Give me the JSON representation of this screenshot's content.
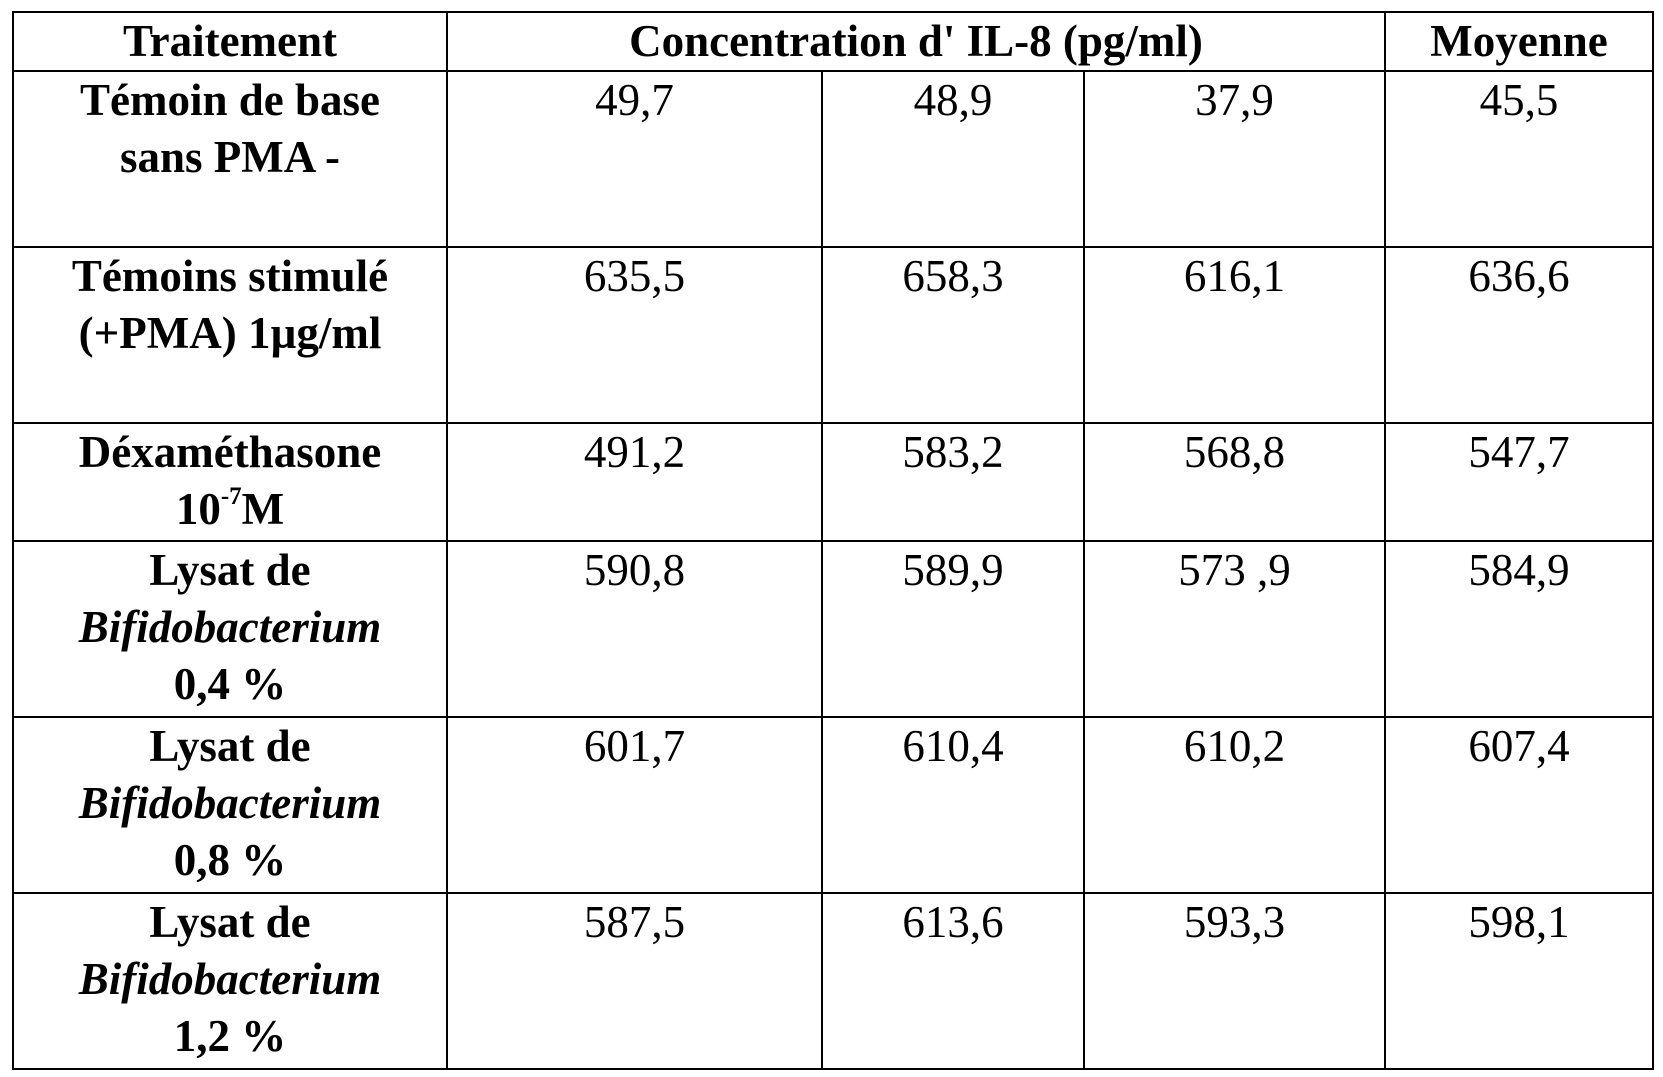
{
  "header": {
    "traitement": "Traitement",
    "concentration": "Concentration d' IL-8 (pg/ml)",
    "moyenne": "Moyenne"
  },
  "rows": [
    {
      "label_lines": [
        "Témoin de base",
        "sans PMA -"
      ],
      "values": [
        "49,7",
        "48,9",
        "37,9"
      ],
      "moyenne": "45,5"
    },
    {
      "label_lines": [
        "Témoins stimulé",
        "(+PMA)  1µg/ml"
      ],
      "values": [
        "635,5",
        "658,3",
        "616,1"
      ],
      "moyenne": "636,6"
    },
    {
      "label_lines": [
        "Déxaméthasone"
      ],
      "label_base": "10",
      "label_exp": "-7",
      "label_unit": "M",
      "values": [
        "491,2",
        "583,2",
        "568,8"
      ],
      "moyenne": "547,7"
    },
    {
      "label_lines": [
        "Lysat de",
        "Bifidobacterium",
        "0,4 %"
      ],
      "values": [
        "590,8",
        "589,9",
        "573 ,9"
      ],
      "moyenne": "584,9"
    },
    {
      "label_lines": [
        "Lysat de",
        "Bifidobacterium",
        "0,8 %"
      ],
      "values": [
        "601,7",
        "610,4",
        "610,2"
      ],
      "moyenne": "607,4"
    },
    {
      "label_lines": [
        "Lysat de",
        "Bifidobacterium",
        "1,2 %"
      ],
      "values": [
        "587,5",
        "613,6",
        "593,3"
      ],
      "moyenne": "598,1"
    }
  ]
}
